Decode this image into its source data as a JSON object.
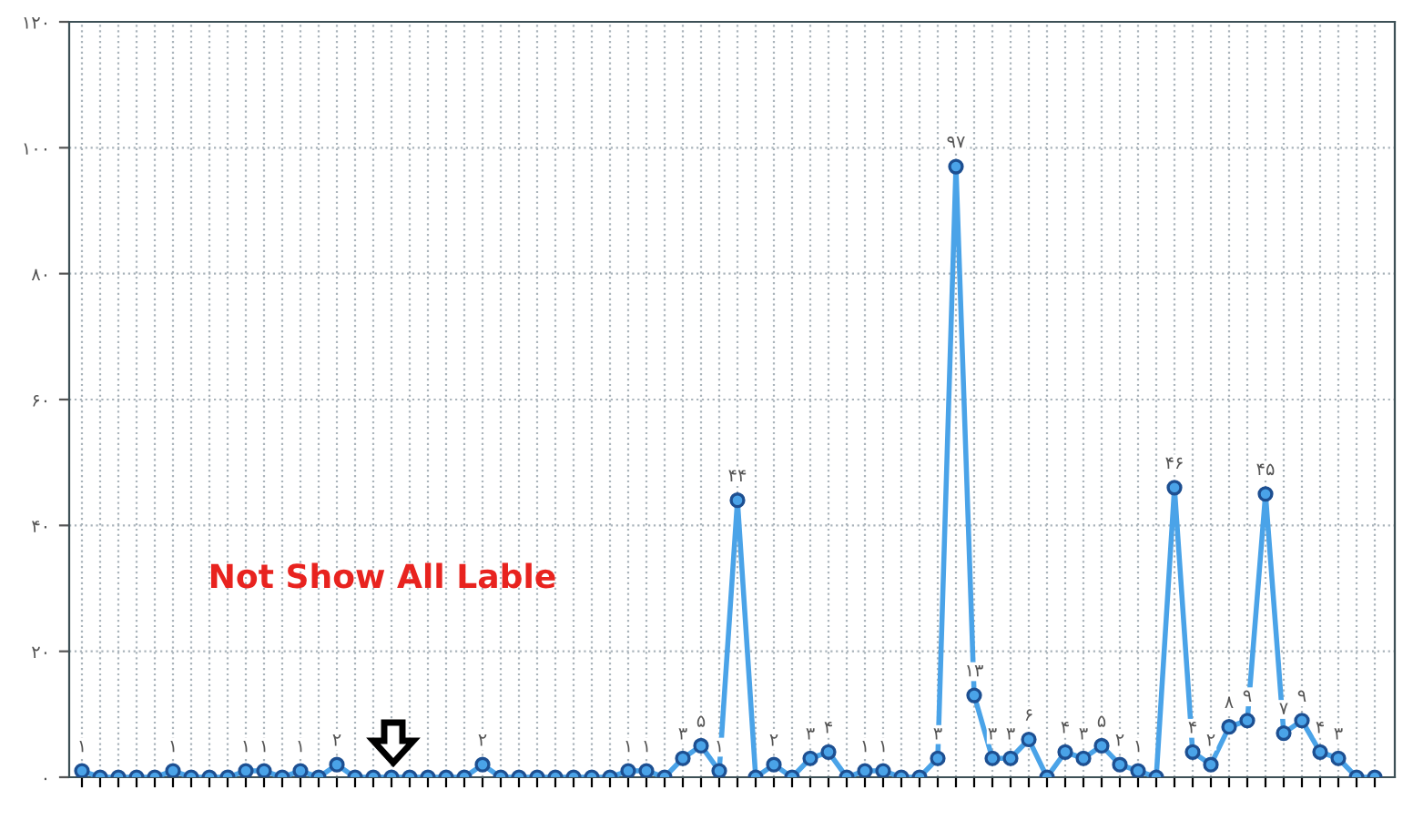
{
  "chart_data": {
    "type": "line",
    "categories": [
      null,
      null,
      null,
      null,
      null,
      null,
      null,
      null,
      null,
      null,
      null,
      null,
      null,
      null,
      null,
      null,
      null,
      null,
      null,
      null,
      null,
      null,
      null,
      null,
      null,
      null,
      null,
      null,
      null,
      null,
      null,
      null,
      null,
      null,
      null,
      null,
      null,
      null,
      null,
      null,
      null,
      null,
      null,
      null,
      null,
      null,
      null,
      null,
      null,
      null,
      null,
      null,
      null,
      null,
      null,
      null,
      null,
      null,
      null,
      null,
      null,
      null,
      null,
      null,
      null,
      null,
      null,
      null,
      null,
      null,
      null,
      null
    ],
    "series": [
      {
        "color": "#4aa3e8",
        "values": [
          1,
          0,
          0,
          0,
          0,
          1,
          0,
          0,
          0,
          1,
          1,
          0,
          1,
          0,
          2,
          0,
          0,
          0,
          0,
          0,
          0,
          0,
          2,
          0,
          0,
          0,
          0,
          0,
          0,
          0,
          1,
          1,
          0,
          3,
          5,
          1,
          44,
          0,
          2,
          0,
          3,
          4,
          0,
          1,
          1,
          0,
          0,
          3,
          97,
          13,
          3,
          3,
          6,
          0,
          4,
          3,
          5,
          2,
          1,
          0,
          46,
          4,
          2,
          8,
          9,
          45,
          7,
          9,
          4,
          3,
          0,
          0
        ],
        "value_labels": [
          "۱",
          null,
          null,
          null,
          null,
          "۱",
          null,
          null,
          null,
          "۱",
          "۱",
          null,
          "۱",
          null,
          "۲",
          null,
          null,
          null,
          null,
          null,
          null,
          null,
          "۲",
          null,
          null,
          null,
          null,
          null,
          null,
          null,
          "۱",
          "۱",
          null,
          "۳",
          "۵",
          "۱",
          "۴۴",
          null,
          "۲",
          null,
          "۳",
          "۴",
          null,
          "۱",
          "۱",
          null,
          null,
          "۳",
          "۹۷",
          "۱۳",
          "۳",
          "۳",
          "۶",
          null,
          "۴",
          "۳",
          "۵",
          "۲",
          "۱",
          null,
          "۴۶",
          "۴",
          "۲",
          "۸",
          "۹",
          "۴۵",
          "۷",
          "۹",
          "۴",
          "۳",
          null,
          null
        ]
      }
    ],
    "ylim": [
      0,
      120
    ],
    "yticks": [
      {
        "value": 0,
        "label": "۰"
      },
      {
        "value": 20,
        "label": "۲۰"
      },
      {
        "value": 40,
        "label": "۴۰"
      },
      {
        "value": 60,
        "label": "۶۰"
      },
      {
        "value": 80,
        "label": "۸۰"
      },
      {
        "value": 100,
        "label": "۱۰۰"
      },
      {
        "value": 120,
        "label": "۱۲۰"
      }
    ],
    "grid": true,
    "marker": "circle",
    "line_style": "solid",
    "legend": false,
    "annotations": [
      "Not Show All Lable"
    ]
  }
}
